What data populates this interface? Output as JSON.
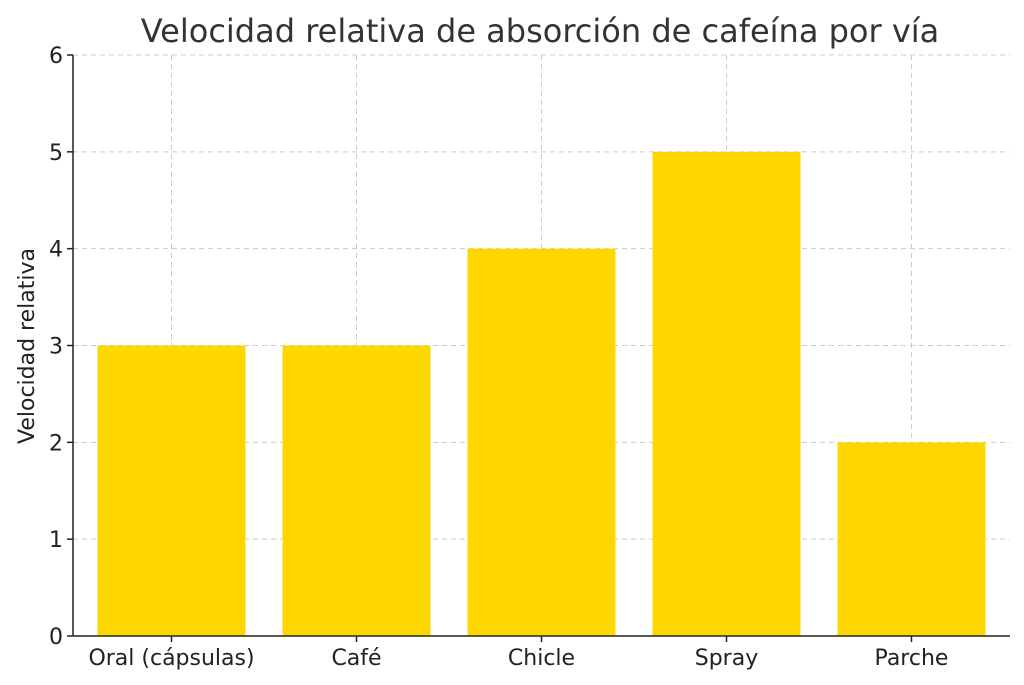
{
  "chart_data": {
    "type": "bar",
    "title": "Velocidad relativa de absorción de cafeína por vía",
    "xlabel": "",
    "ylabel": "Velocidad relativa",
    "categories": [
      "Oral (cápsulas)",
      "Café",
      "Chicle",
      "Spray",
      "Parche"
    ],
    "values": [
      3,
      3,
      4,
      5,
      2
    ],
    "ylim": [
      0,
      6
    ],
    "yticks": [
      0,
      1,
      2,
      3,
      4,
      5,
      6
    ],
    "bar_color": "#FFD700",
    "grid": true
  }
}
